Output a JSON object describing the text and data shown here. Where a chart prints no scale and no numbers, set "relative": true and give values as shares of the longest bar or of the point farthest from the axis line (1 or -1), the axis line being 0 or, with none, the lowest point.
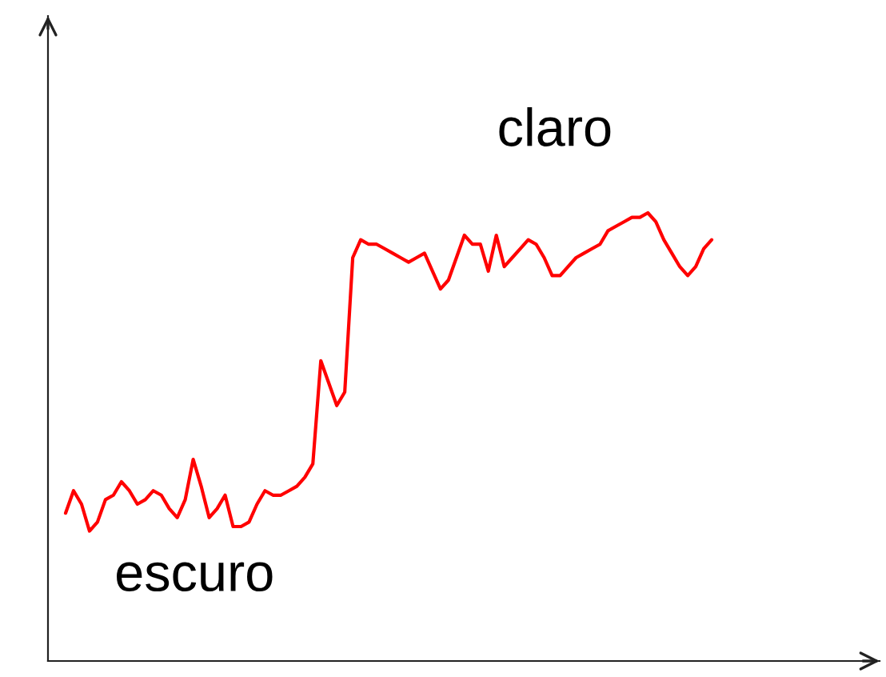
{
  "chart_data": {
    "type": "line",
    "relative": true,
    "tick_labels": false,
    "legend": false,
    "categories": [
      null,
      null,
      null,
      null,
      null,
      null,
      null,
      null,
      null,
      null,
      null,
      null,
      null,
      null,
      null,
      null,
      null,
      null,
      null,
      null,
      null,
      null,
      null,
      null,
      null,
      null,
      null,
      null,
      null,
      null,
      null,
      null,
      null,
      null,
      null,
      null,
      null,
      null,
      null,
      null,
      null,
      null,
      null,
      null,
      null,
      null,
      null,
      null,
      null,
      null,
      null,
      null,
      null,
      null,
      null,
      null,
      null,
      null,
      null,
      null,
      null,
      null,
      null,
      null,
      null,
      null,
      null,
      null,
      null,
      null,
      null,
      null,
      null,
      null,
      null,
      null,
      null,
      null,
      null,
      null,
      null,
      null
    ],
    "series": [
      {
        "color": "#ff0000",
        "values": [
          0.33,
          0.38,
          0.35,
          0.29,
          0.31,
          0.36,
          0.37,
          0.4,
          0.38,
          0.35,
          0.36,
          0.38,
          0.37,
          0.34,
          0.32,
          0.36,
          0.45,
          0.39,
          0.32,
          0.34,
          0.37,
          0.3,
          0.3,
          0.31,
          0.35,
          0.38,
          0.37,
          0.37,
          0.38,
          0.39,
          0.41,
          0.44,
          0.67,
          0.62,
          0.57,
          0.6,
          0.9,
          0.94,
          0.93,
          0.93,
          0.92,
          0.91,
          0.9,
          0.89,
          0.9,
          0.91,
          0.87,
          0.83,
          0.85,
          0.9,
          0.95,
          0.93,
          0.93,
          0.87,
          0.95,
          0.88,
          0.9,
          0.92,
          0.94,
          0.93,
          0.9,
          0.86,
          0.86,
          0.88,
          0.9,
          0.91,
          0.92,
          0.93,
          0.96,
          0.97,
          0.98,
          0.99,
          0.99,
          1,
          0.98,
          0.94,
          0.91,
          0.88,
          0.86,
          0.88,
          0.92,
          0.94
        ]
      }
    ],
    "annotations": [
      "claro",
      "escuro"
    ]
  }
}
